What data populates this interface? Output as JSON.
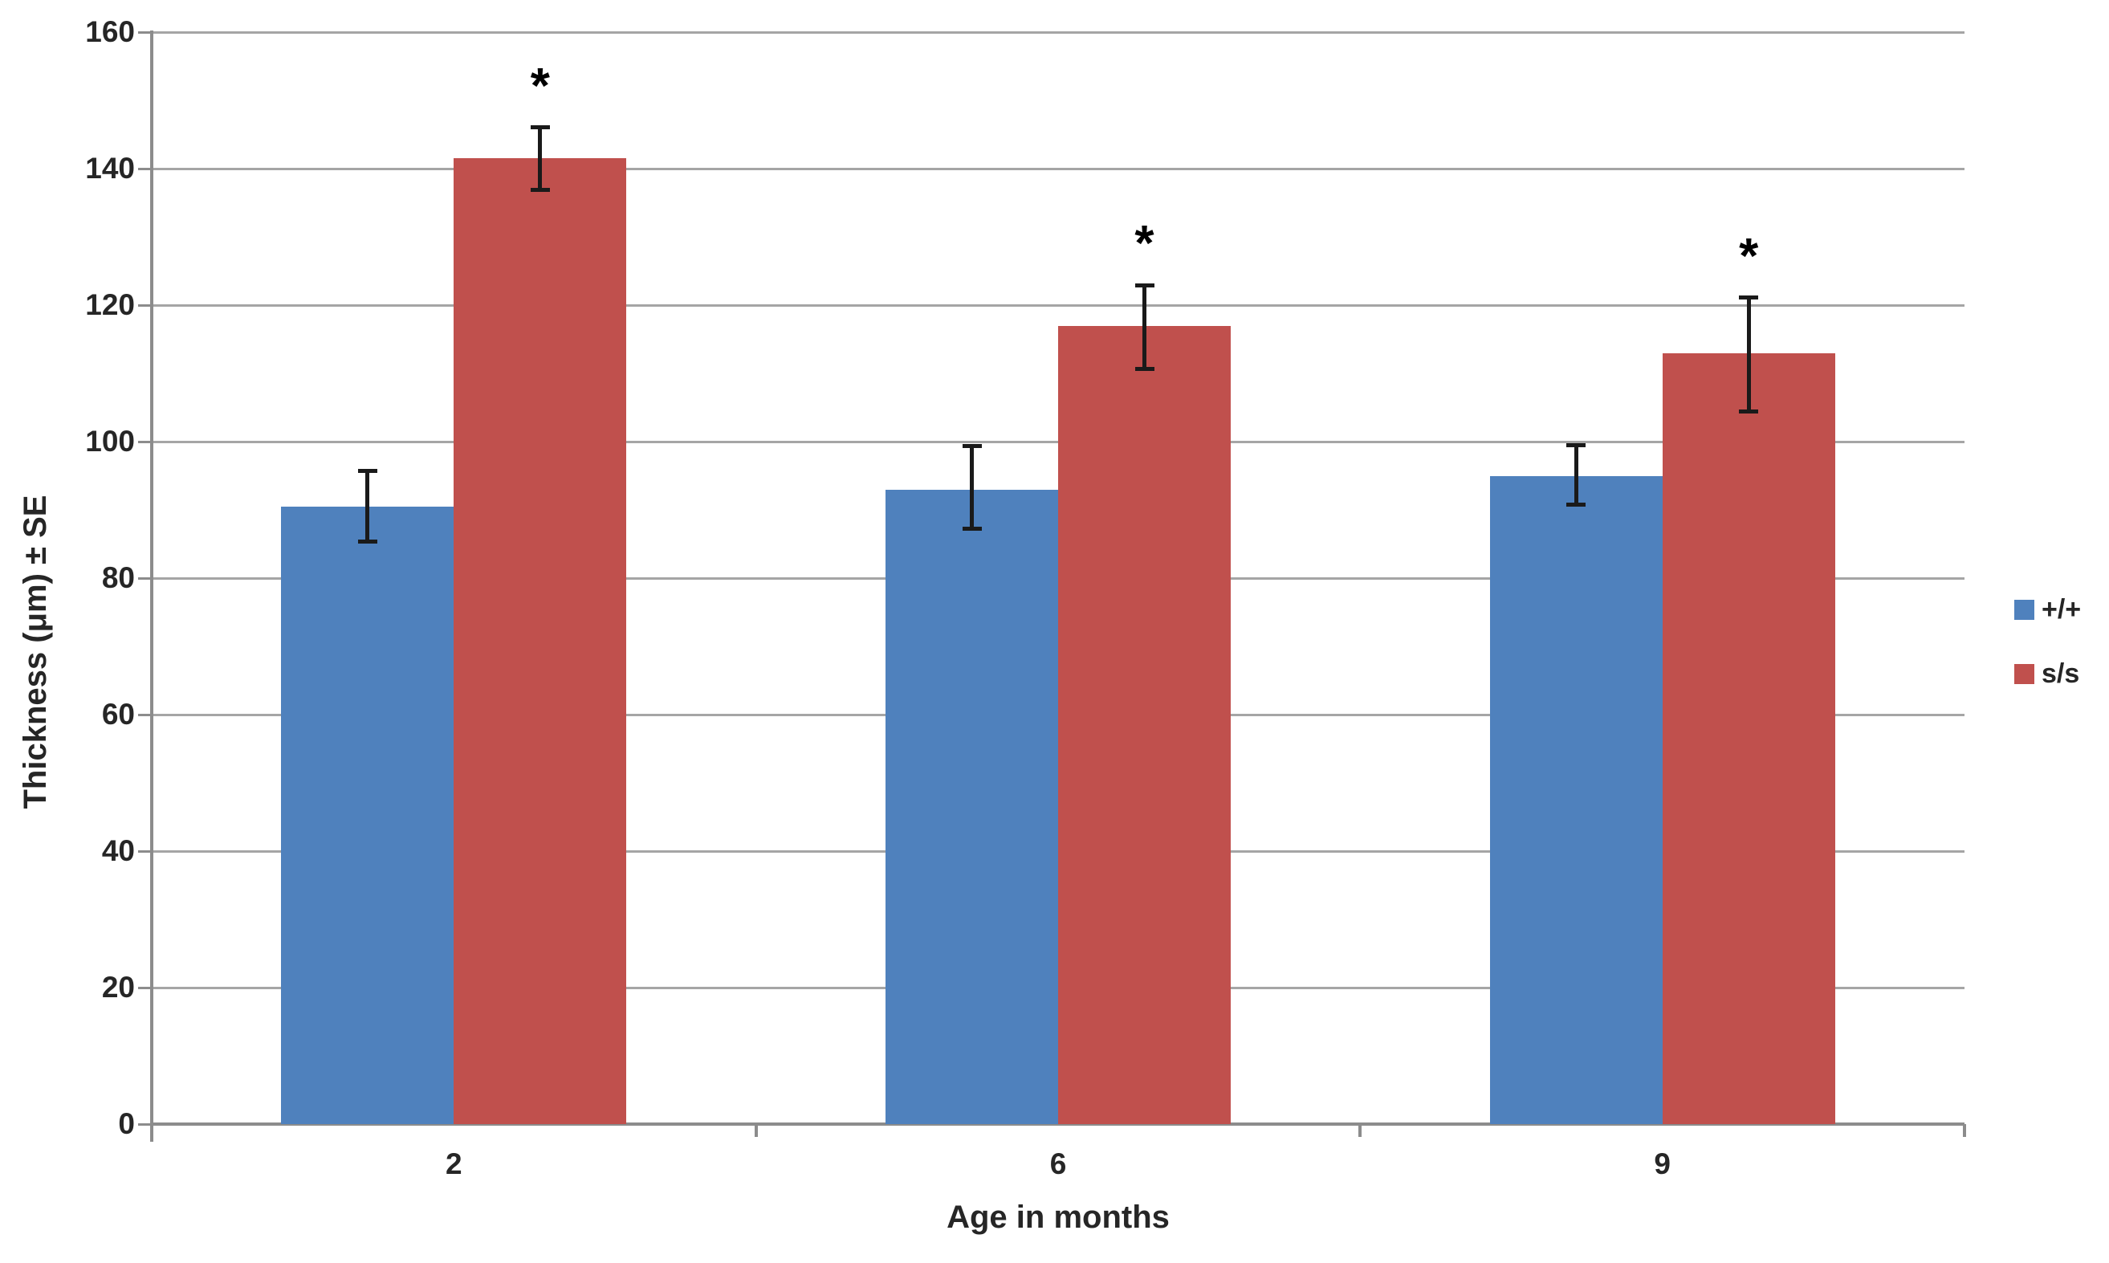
{
  "chart_data": {
    "type": "bar",
    "title": "",
    "xlabel": "Age in months",
    "ylabel": "Thickness (μm) ± SE",
    "categories": [
      "2",
      "6",
      "9"
    ],
    "series": [
      {
        "name": "+/+",
        "color": "#4F81BD",
        "values": [
          90.5,
          93,
          95
        ],
        "error_plus": [
          5.3,
          6.4,
          4.5
        ],
        "error_minus": [
          5.1,
          5.7,
          4.2
        ],
        "significance": [
          "",
          "",
          ""
        ]
      },
      {
        "name": "s/s",
        "color": "#C0504D",
        "values": [
          141.5,
          117,
          113
        ],
        "error_plus": [
          4.6,
          6.0,
          8.2
        ],
        "error_minus": [
          4.6,
          6.3,
          8.5
        ],
        "significance": [
          "*",
          "*",
          "*"
        ]
      }
    ],
    "ylim": [
      0,
      160
    ],
    "ytick_step": 20,
    "y_tick_labels": [
      "0",
      "20",
      "40",
      "60",
      "80",
      "100",
      "120",
      "140",
      "160"
    ],
    "grid": true,
    "error_bars": "± SE",
    "legend_position": "right-middle"
  },
  "legend": {
    "items": [
      {
        "label": "+/+",
        "color": "#4F81BD"
      },
      {
        "label": "s/s",
        "color": "#C0504D"
      }
    ]
  },
  "colors": {
    "background": "#FFFFFF",
    "gridline": "#A5A5A5",
    "axis": "#8C8C8C",
    "text": "#262626",
    "error_bar": "#1A1A1A",
    "significance_star": "#000000"
  }
}
